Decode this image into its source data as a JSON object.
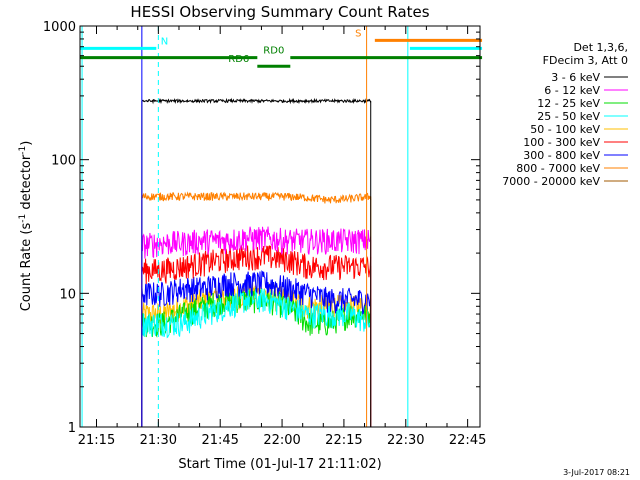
{
  "chart_data": {
    "type": "line",
    "title": "HESSI Observing Summary Count Rates",
    "xlabel": "Start Time (01-Jul-17 21:11:02)",
    "ylabel_main": "Count Rate (s",
    "ylabel_sup1": "-1",
    "ylabel_mid": " detector",
    "ylabel_sup2": "-1",
    "ylabel_end": ")",
    "x_unit": "minutes after 21:11:02",
    "xlim": [
      0,
      97
    ],
    "ylim": [
      1,
      1000
    ],
    "yscale": "log",
    "x_ticks": [
      {
        "label": "21:15",
        "value": 4
      },
      {
        "label": "21:30",
        "value": 19
      },
      {
        "label": "21:45",
        "value": 34
      },
      {
        "label": "22:00",
        "value": 49
      },
      {
        "label": "22:15",
        "value": 64
      },
      {
        "label": "22:30",
        "value": 79
      },
      {
        "label": "22:45",
        "value": 94
      }
    ],
    "y_ticks": [
      {
        "label": "1",
        "value": 1
      },
      {
        "label": "10",
        "value": 10
      },
      {
        "label": "100",
        "value": 100
      },
      {
        "label": "1000",
        "value": 1000
      }
    ],
    "data_start": 15.0,
    "data_end": 70.5,
    "legend_header": [
      "Det 1,3,6,",
      "FDecim 3, Att 0"
    ],
    "legend_position": "top-right",
    "series": [
      {
        "name": "3 - 6 keV",
        "color": "#000000",
        "values": [
          275,
          275,
          275,
          275,
          275,
          275,
          275,
          275,
          275,
          275,
          275,
          275
        ]
      },
      {
        "name": "6 - 12 keV",
        "color": "#ff00ff",
        "values": [
          23,
          24,
          24,
          25,
          25,
          26,
          26,
          25,
          25,
          25,
          25,
          25
        ]
      },
      {
        "name": "12 - 25 keV",
        "color": "#00dd00",
        "values": [
          6,
          6,
          7,
          8,
          9,
          9,
          9,
          8,
          6,
          6,
          7,
          7
        ]
      },
      {
        "name": "25 - 50 keV",
        "color": "#00ffff",
        "values": [
          6,
          6,
          6,
          7,
          8,
          9,
          9,
          8,
          7,
          7,
          7,
          6
        ]
      },
      {
        "name": "50 - 100 keV",
        "color": "#ffbf00",
        "values": [
          7,
          7,
          8,
          9,
          9,
          10,
          10,
          9,
          8,
          8,
          8,
          8
        ]
      },
      {
        "name": "100 - 300 keV",
        "color": "#ff0000",
        "values": [
          15,
          15,
          16,
          17,
          18,
          19,
          19,
          18,
          16,
          16,
          16,
          16
        ]
      },
      {
        "name": "300 - 800 keV",
        "color": "#0000ff",
        "values": [
          10,
          10,
          11,
          11,
          12,
          12,
          12,
          11,
          10,
          9,
          9,
          9
        ]
      },
      {
        "name": "800 - 7000 keV",
        "color": "#ff8000",
        "values": [
          53,
          53,
          53,
          53,
          53,
          53,
          53,
          53,
          52,
          50,
          51,
          53
        ]
      },
      {
        "name": "7000 - 20000 keV",
        "color": "#a05a00",
        "values": []
      }
    ],
    "vertical_lines": [
      {
        "x": 0.5,
        "color": "#00ffff",
        "dashed": false
      },
      {
        "x": 15.0,
        "color": "#0000ff",
        "dashed": false
      },
      {
        "x": 19.0,
        "color": "#00ffff",
        "dashed": true
      },
      {
        "x": 69.5,
        "color": "#ff8000",
        "dashed": false
      },
      {
        "x": 79.5,
        "color": "#00ffff",
        "dashed": false
      },
      {
        "x": 97.0,
        "color": "#ff8000",
        "dashed": true
      }
    ],
    "flag_bars": [
      {
        "label": "N",
        "color": "#00ffff",
        "y": 680,
        "segments": [
          [
            0,
            18.5
          ]
        ],
        "label_x": 20.5
      },
      {
        "label": "S",
        "color": "#ff8000",
        "y": 780,
        "segments": [
          [
            71.5,
            97.5
          ]
        ],
        "label_x": 67.5
      },
      {
        "label": "",
        "color": "#00ffff",
        "y": 680,
        "segments": [
          [
            80,
            97.5
          ]
        ],
        "label_x": null
      },
      {
        "label": "RD0",
        "color": "#008000",
        "y": 580,
        "segments": [
          [
            0,
            43
          ],
          [
            51,
            97.5
          ]
        ],
        "label_x": 47
      },
      {
        "label": "RD6",
        "color": "#008000",
        "y": 500,
        "segments": [
          [
            43,
            51
          ]
        ],
        "label_x": 38.5
      }
    ]
  },
  "footer": {
    "date_stamp": "3-Jul-2017 08:21"
  }
}
